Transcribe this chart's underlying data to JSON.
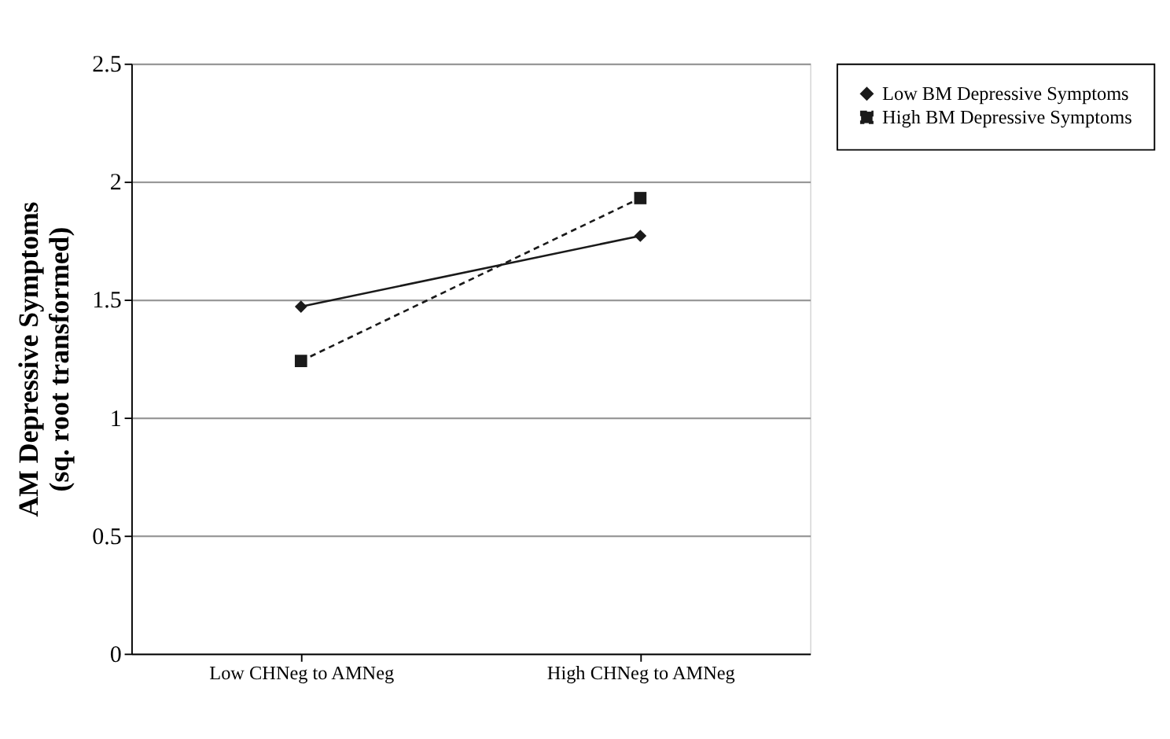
{
  "chart_data": {
    "type": "line",
    "categories": [
      "Low CHNeg to AMNeg",
      "High CHNeg to AMNeg"
    ],
    "ylabel": [
      "AM Depressive Symptoms",
      "(sq. root transformed)"
    ],
    "ylim": [
      0,
      2.5
    ],
    "yticks": [
      0,
      0.5,
      1,
      1.5,
      2,
      2.5
    ],
    "grid": "y",
    "legend": "right",
    "series": [
      {
        "name": "Low BM Depressive Symptoms",
        "color": "#1a1a1a",
        "marker": "diamond",
        "line_style": "solid",
        "values": [
          1.47,
          1.77
        ]
      },
      {
        "name": "High BM Depressive Symptoms",
        "color": "#1a1a1a",
        "marker": "square",
        "line_style": "dashed",
        "values": [
          1.24,
          1.93
        ]
      }
    ]
  }
}
